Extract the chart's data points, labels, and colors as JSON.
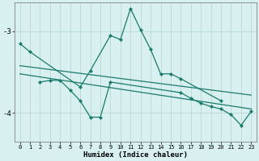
{
  "xlabel": "Humidex (Indice chaleur)",
  "bg_color": "#d8f0f0",
  "grid_color": "#b8d8d8",
  "line_color": "#1a7a6a",
  "xlim": [
    -0.5,
    23.5
  ],
  "ylim": [
    -4.35,
    -2.65
  ],
  "yticks": [
    -4,
    -3
  ],
  "xticks": [
    0,
    1,
    2,
    3,
    4,
    5,
    6,
    7,
    8,
    9,
    10,
    11,
    12,
    13,
    14,
    15,
    16,
    17,
    18,
    19,
    20,
    21,
    22,
    23
  ],
  "series": [
    {
      "x": [
        0,
        1,
        6,
        7,
        9,
        10,
        11,
        12,
        13,
        14,
        15,
        16,
        20
      ],
      "y": [
        -3.15,
        -3.25,
        -3.68,
        -3.48,
        -3.05,
        -3.1,
        -2.72,
        -2.98,
        -3.22,
        -3.52,
        -3.52,
        -3.58,
        -3.85
      ],
      "has_markers": true
    },
    {
      "x": [
        2,
        3,
        4,
        5,
        6,
        7,
        8,
        9,
        16,
        17,
        18,
        19,
        20,
        21,
        22,
        23
      ],
      "y": [
        -3.62,
        -3.6,
        -3.6,
        -3.72,
        -3.85,
        -4.05,
        -4.05,
        -3.62,
        -3.75,
        -3.82,
        -3.88,
        -3.92,
        -3.95,
        -4.02,
        -4.15,
        -3.98
      ],
      "has_markers": true
    },
    {
      "x": [
        0,
        23
      ],
      "y": [
        -3.42,
        -3.78
      ],
      "has_markers": false
    },
    {
      "x": [
        0,
        23
      ],
      "y": [
        -3.52,
        -3.95
      ],
      "has_markers": false
    }
  ]
}
